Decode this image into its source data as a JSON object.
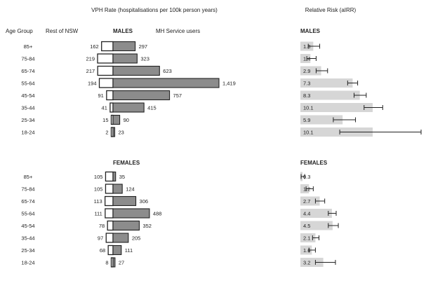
{
  "chart_data": [
    {
      "type": "bar",
      "title": "VPH Rate (hospitalisations per 100k person years)",
      "row_header": "Age Group",
      "colors": {
        "rest_fill": "#ffffff",
        "rest_stroke": "#222222",
        "mh_fill": "#8c8c8c",
        "mh_stroke": "#222222"
      },
      "series_labels": {
        "rest": "Rest of NSW",
        "mh": "MH Service users"
      },
      "groups": [
        {
          "name": "MALES",
          "categories": [
            "85+",
            "75-84",
            "65-74",
            "55-64",
            "45-54",
            "35-44",
            "25-34",
            "18-24"
          ],
          "series": [
            {
              "name": "Rest of NSW",
              "values": [
                162,
                219,
                217,
                194,
                91,
                41,
                15,
                2
              ]
            },
            {
              "name": "MH Service users",
              "values": [
                297,
                323,
                623,
                1419,
                757,
                415,
                90,
                23
              ]
            }
          ],
          "value_labels": {
            "rest": [
              "162",
              "219",
              "217",
              "194",
              "91",
              "41",
              "15",
              "2"
            ],
            "mh": [
              "297",
              "323",
              "623",
              "1,419",
              "757",
              "415",
              "90",
              "23"
            ]
          }
        },
        {
          "name": "FEMALES",
          "categories": [
            "85+",
            "75-84",
            "65-74",
            "55-64",
            "45-54",
            "35-44",
            "25-34",
            "18-24"
          ],
          "series": [
            {
              "name": "Rest of NSW",
              "values": [
                105,
                105,
                113,
                111,
                78,
                97,
                68,
                8
              ]
            },
            {
              "name": "MH Service users",
              "values": [
                35,
                124,
                306,
                488,
                352,
                205,
                111,
                27
              ]
            }
          ],
          "value_labels": {
            "rest": [
              "105",
              "105",
              "113",
              "111",
              "78",
              "97",
              "68",
              "8"
            ],
            "mh": [
              "35",
              "124",
              "306",
              "488",
              "352",
              "205",
              "111",
              "27"
            ]
          }
        }
      ]
    },
    {
      "type": "bar",
      "title": "Relative Risk (aIRR)",
      "colors": {
        "bar_fill": "#d6d6d6",
        "error_bar": "#222222"
      },
      "groups": [
        {
          "name": "MALES",
          "categories": [
            "85+",
            "75-84",
            "65-74",
            "55-64",
            "45-54",
            "35-44",
            "25-34",
            "18-24"
          ],
          "values": [
            1.8,
            1.4,
            2.9,
            7.3,
            8.3,
            10.1,
            5.9,
            10.1
          ],
          "value_labels": [
            "1.8",
            "1.4",
            "2.9",
            "7.3",
            "8.3",
            "10.1",
            "5.9",
            "10.1"
          ],
          "ci_low": [
            1.1,
            0.9,
            2.2,
            6.6,
            7.5,
            8.9,
            4.6,
            5.5
          ],
          "ci_high": [
            2.7,
            2.2,
            3.8,
            8.0,
            9.2,
            11.5,
            7.7,
            19.0
          ]
        },
        {
          "name": "FEMALES",
          "categories": [
            "85+",
            "75-84",
            "65-74",
            "55-64",
            "45-54",
            "35-44",
            "25-34",
            "18-24"
          ],
          "values": [
            0.3,
            1.2,
            2.7,
            4.4,
            4.5,
            2.1,
            1.6,
            3.2
          ],
          "value_labels": [
            "0.3",
            "1.2",
            "2.7",
            "4.4",
            "4.5",
            "2.1",
            "1.6",
            "3.2"
          ],
          "ci_low": [
            0.1,
            0.8,
            2.1,
            3.9,
            3.9,
            1.7,
            1.2,
            2.1
          ],
          "ci_high": [
            0.6,
            1.8,
            3.4,
            5.0,
            5.3,
            2.6,
            2.1,
            4.9
          ]
        }
      ]
    }
  ]
}
